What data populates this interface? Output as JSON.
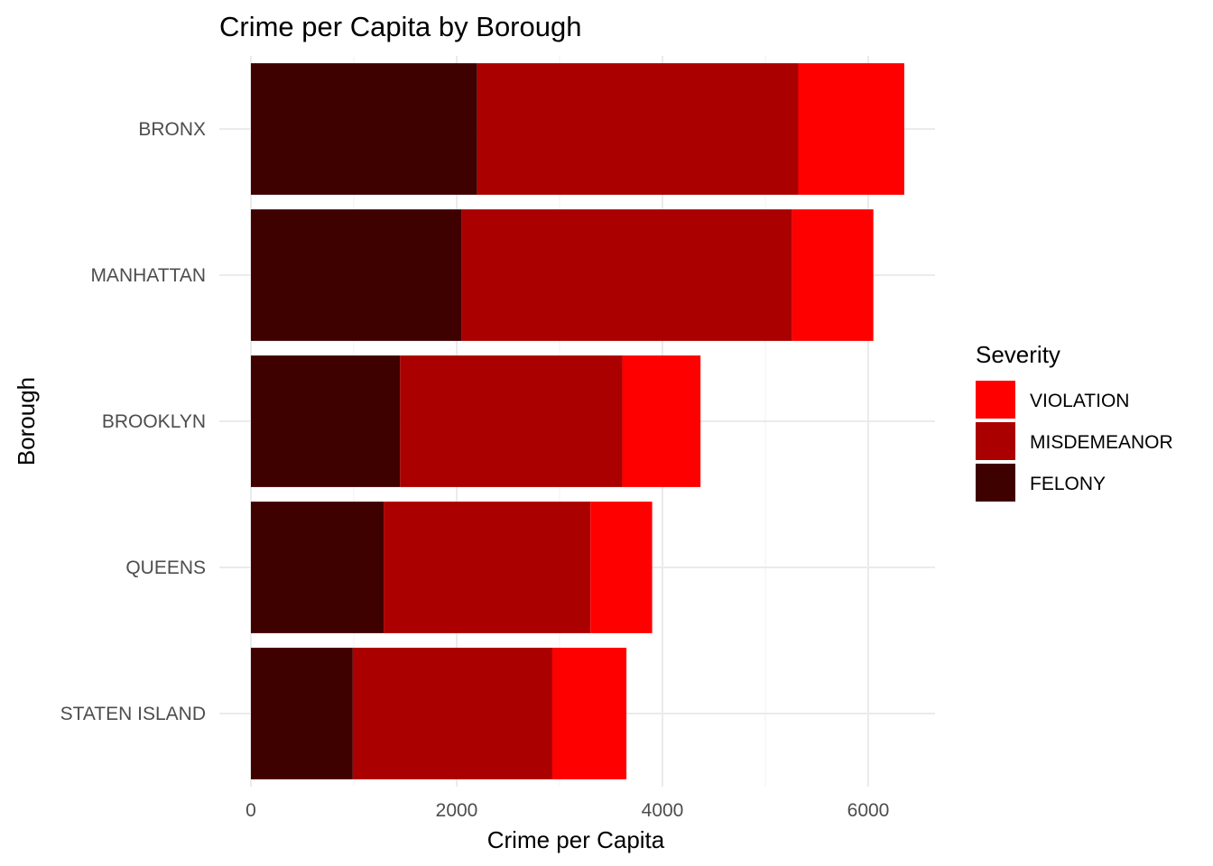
{
  "chart_data": {
    "type": "bar",
    "orientation": "horizontal",
    "stacked": true,
    "title": "Crime per Capita by Borough",
    "xlabel": "Crime per Capita",
    "ylabel": "Borough",
    "xlim": [
      0,
      6650
    ],
    "x_ticks": [
      0,
      2000,
      4000,
      6000
    ],
    "x_tick_labels": [
      "0",
      "2000",
      "4000",
      "6000"
    ],
    "grid": true,
    "legend_position": "right",
    "legend_title": "Severity",
    "categories": [
      "BRONX",
      "MANHATTAN",
      "BROOKLYN",
      "QUEENS",
      "STATEN ISLAND"
    ],
    "series": [
      {
        "name": "FELONY",
        "color": "#3f0000",
        "values": [
          2200,
          2050,
          1450,
          1290,
          990
        ]
      },
      {
        "name": "MISDEMEANOR",
        "color": "#ab0000",
        "values": [
          3120,
          3210,
          2160,
          2010,
          1940
        ]
      },
      {
        "name": "VIOLATION",
        "color": "#ff0000",
        "values": [
          1030,
          790,
          760,
          600,
          720
        ]
      }
    ],
    "legend_order": [
      "VIOLATION",
      "MISDEMEANOR",
      "FELONY"
    ]
  }
}
